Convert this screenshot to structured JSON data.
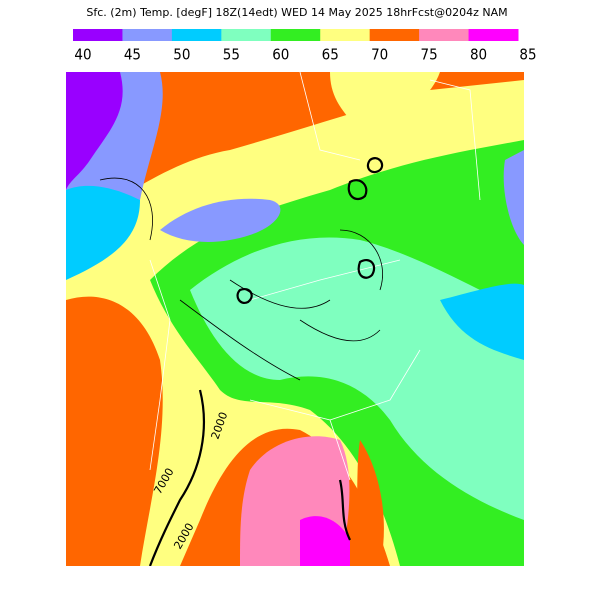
{
  "title": "Sfc. (2m) Temp. [degF] 18Z(14edt) WED 14 May 2025 18hrFcst@0204z NAM",
  "colorbar": {
    "ticks": [
      40,
      45,
      50,
      55,
      60,
      65,
      70,
      75,
      80,
      85
    ],
    "colors": [
      "#9900ff",
      "#8899ff",
      "#00ccff",
      "#7fffbf",
      "#33ee22",
      "#ffff80",
      "#ff6600",
      "#ff88bb",
      "#ff00ff"
    ]
  },
  "contour_labels": [
    "2000",
    "7000",
    "2000"
  ]
}
